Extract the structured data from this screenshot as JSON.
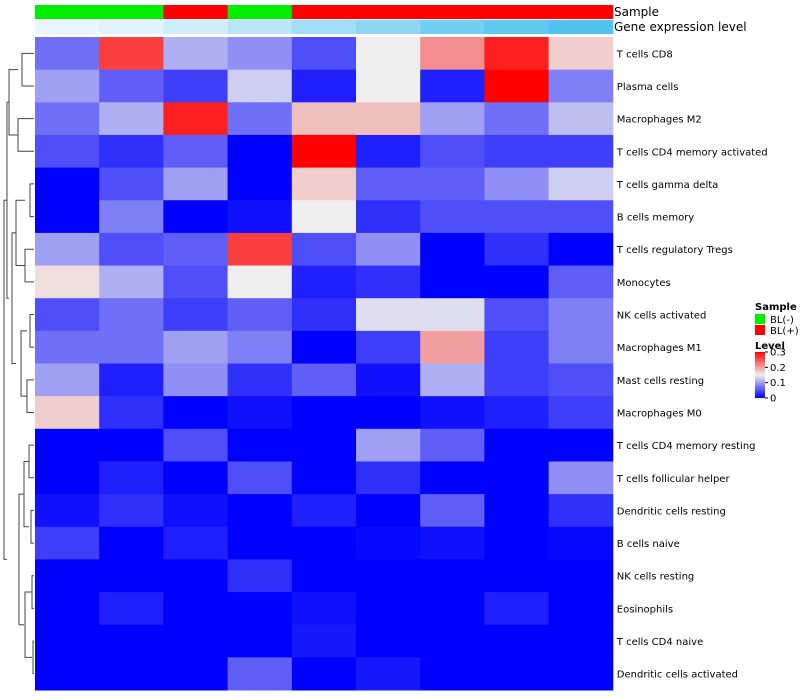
{
  "chart_data": {
    "type": "heatmap",
    "annotations": {
      "sample": {
        "label": "Sample",
        "values": [
          "BL(-)",
          "BL(-)",
          "BL(+)",
          "BL(-)",
          "BL(+)",
          "BL(+)",
          "BL(+)",
          "BL(+)",
          "BL(+)"
        ]
      },
      "gene_expression_level": {
        "label": "Gene expression level",
        "values": [
          0.0,
          0.04,
          0.12,
          0.2,
          0.3,
          0.38,
          0.5,
          0.58,
          0.65
        ]
      }
    },
    "rows": [
      "T cells CD8",
      "Plasma cells",
      "Macrophages M2",
      "T cells CD4 memory activated",
      "T cells gamma delta",
      "B cells memory",
      "T cells regulatory  Tregs",
      "Monocytes",
      "NK cells activated",
      "Macrophages M1",
      "Mast cells resting",
      "Macrophages M0",
      "T cells CD4 memory resting",
      "T cells follicular helper",
      "Dendritic cells resting",
      "B cells naive",
      "NK cells resting",
      "Eosinophils",
      "T cells CD4 naive",
      "Dendritic cells activated"
    ],
    "values": [
      [
        0.07,
        0.26,
        0.11,
        0.09,
        0.05,
        0.15,
        0.21,
        0.28,
        0.17
      ],
      [
        0.1,
        0.06,
        0.04,
        0.13,
        0.02,
        0.15,
        0.02,
        0.3,
        0.08
      ],
      [
        0.07,
        0.11,
        0.28,
        0.07,
        0.18,
        0.18,
        0.1,
        0.07,
        0.12
      ],
      [
        0.05,
        0.03,
        0.06,
        0.0,
        0.3,
        0.02,
        0.05,
        0.04,
        0.04
      ],
      [
        0.0,
        0.05,
        0.1,
        0.0,
        0.17,
        0.06,
        0.06,
        0.09,
        0.13
      ],
      [
        0.0,
        0.08,
        0.0,
        0.01,
        0.15,
        0.03,
        0.05,
        0.05,
        0.05
      ],
      [
        0.1,
        0.05,
        0.06,
        0.26,
        0.05,
        0.09,
        0.0,
        0.03,
        0.0
      ],
      [
        0.16,
        0.11,
        0.05,
        0.15,
        0.02,
        0.03,
        0.0,
        0.0,
        0.06
      ],
      [
        0.05,
        0.07,
        0.04,
        0.06,
        0.03,
        0.14,
        0.14,
        0.05,
        0.08
      ],
      [
        0.07,
        0.07,
        0.1,
        0.08,
        0.0,
        0.04,
        0.2,
        0.04,
        0.08
      ],
      [
        0.1,
        0.02,
        0.09,
        0.03,
        0.06,
        0.01,
        0.11,
        0.04,
        0.05
      ],
      [
        0.17,
        0.03,
        0.0,
        0.01,
        0.0,
        0.0,
        0.01,
        0.02,
        0.04
      ],
      [
        0.0,
        0.0,
        0.05,
        0.0,
        0.0,
        0.1,
        0.06,
        0.0,
        0.0
      ],
      [
        0.0,
        0.02,
        0.0,
        0.05,
        0.0,
        0.03,
        0.0,
        0.0,
        0.09
      ],
      [
        0.01,
        0.03,
        0.01,
        0.0,
        0.02,
        0.0,
        0.06,
        0.0,
        0.03
      ],
      [
        0.04,
        0.0,
        0.02,
        0.0,
        0.0,
        0.005,
        0.01,
        0.0,
        0.005
      ],
      [
        0.0,
        0.0,
        0.0,
        0.03,
        0.0,
        0.0,
        0.0,
        0.0,
        0.0
      ],
      [
        0.0,
        0.02,
        0.0,
        0.0,
        0.01,
        0.0,
        0.0,
        0.02,
        0.0
      ],
      [
        0.0,
        0.0,
        0.0,
        0.0,
        0.015,
        0.0,
        0.0,
        0.0,
        0.0
      ],
      [
        0.0,
        0.0,
        0.0,
        0.06,
        0.0,
        0.015,
        0.0,
        0.0,
        0.0
      ]
    ],
    "color_scale": {
      "min": 0,
      "mid": 0.15,
      "max": 0.3,
      "low": "#0000ff",
      "midColor": "#eeeeee",
      "high": "#ff0000"
    },
    "legend": {
      "sample_title": "Sample",
      "sample_items": [
        {
          "label": "BL(-)",
          "color": "#00ee00"
        },
        {
          "label": "BL(+)",
          "color": "#ff0000"
        }
      ],
      "level_title": "Level",
      "level_ticks": [
        "0.3",
        "0.2",
        "0.1",
        "0"
      ],
      "level_tick_values": [
        0.3,
        0.2,
        0.1,
        0
      ]
    },
    "annotation_colors": {
      "low": "#eaf6fb",
      "high": "#4fc3ee"
    },
    "row_dendrogram": true,
    "legend_position": "right"
  }
}
